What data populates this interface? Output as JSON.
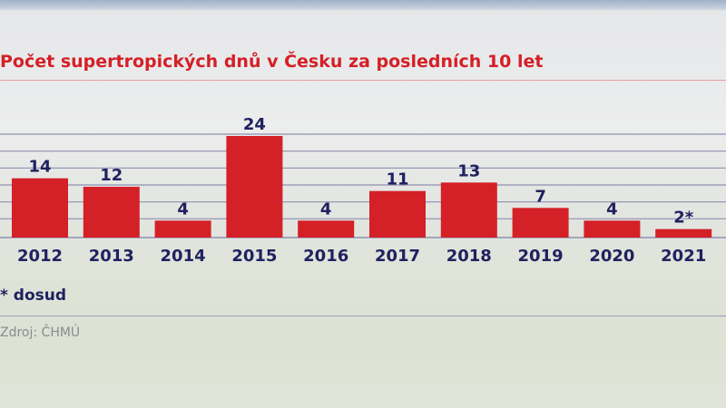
{
  "chart_data": {
    "type": "bar",
    "title": "Počet supertropických dnů v Česku za posledních 10 let",
    "categories": [
      "2012",
      "2013",
      "2014",
      "2015",
      "2016",
      "2017",
      "2018",
      "2019",
      "2020",
      "2021"
    ],
    "values": [
      14,
      12,
      4,
      24,
      4,
      11,
      13,
      7,
      4,
      2
    ],
    "data_labels": [
      "14",
      "12",
      "4",
      "24",
      "4",
      "11",
      "13",
      "7",
      "4",
      "2*"
    ],
    "ylim": [
      0,
      24
    ],
    "grid": true,
    "bar_color": "#d42027",
    "label_color": "#1f2160",
    "footnote": "* dosud",
    "source": "Zdroj: ČHMÚ"
  }
}
